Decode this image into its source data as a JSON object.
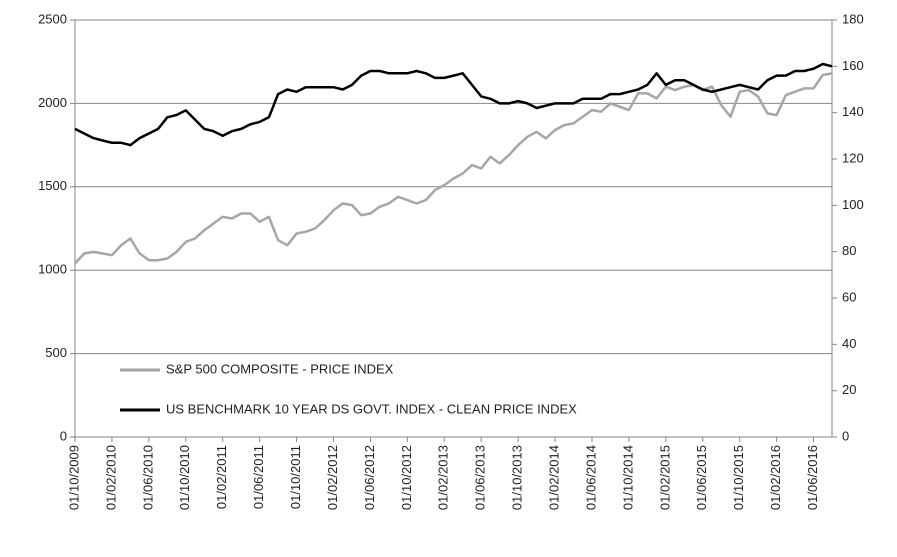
{
  "chart_data": {
    "type": "line",
    "x": [
      "01/10/2009",
      "01/11/2009",
      "01/12/2009",
      "01/01/2010",
      "01/02/2010",
      "01/03/2010",
      "01/04/2010",
      "01/05/2010",
      "01/06/2010",
      "01/07/2010",
      "01/08/2010",
      "01/09/2010",
      "01/10/2010",
      "01/11/2010",
      "01/12/2010",
      "01/01/2011",
      "01/02/2011",
      "01/03/2011",
      "01/04/2011",
      "01/05/2011",
      "01/06/2011",
      "01/07/2011",
      "01/08/2011",
      "01/09/2011",
      "01/10/2011",
      "01/11/2011",
      "01/12/2011",
      "01/01/2012",
      "01/02/2012",
      "01/03/2012",
      "01/04/2012",
      "01/05/2012",
      "01/06/2012",
      "01/07/2012",
      "01/08/2012",
      "01/09/2012",
      "01/10/2012",
      "01/11/2012",
      "01/12/2012",
      "01/01/2013",
      "01/02/2013",
      "01/03/2013",
      "01/04/2013",
      "01/05/2013",
      "01/06/2013",
      "01/07/2013",
      "01/08/2013",
      "01/09/2013",
      "01/10/2013",
      "01/11/2013",
      "01/12/2013",
      "01/01/2014",
      "01/02/2014",
      "01/03/2014",
      "01/04/2014",
      "01/05/2014",
      "01/06/2014",
      "01/07/2014",
      "01/08/2014",
      "01/09/2014",
      "01/10/2014",
      "01/11/2014",
      "01/12/2014",
      "01/01/2015",
      "01/02/2015",
      "01/03/2015",
      "01/04/2015",
      "01/05/2015",
      "01/06/2015",
      "01/07/2015",
      "01/08/2015",
      "01/09/2015",
      "01/10/2015",
      "01/11/2015",
      "01/12/2015",
      "01/01/2016",
      "01/02/2016",
      "01/03/2016",
      "01/04/2016",
      "01/05/2016",
      "01/06/2016",
      "01/07/2016",
      "01/08/2016"
    ],
    "series": [
      {
        "name": "S&P 500 COMPOSITE - PRICE INDEX",
        "color": "#a6a6a6",
        "values": [
          1040,
          1100,
          1110,
          1100,
          1090,
          1150,
          1190,
          1100,
          1060,
          1060,
          1070,
          1110,
          1170,
          1190,
          1240,
          1280,
          1320,
          1310,
          1340,
          1340,
          1290,
          1320,
          1180,
          1150,
          1220,
          1230,
          1250,
          1300,
          1360,
          1400,
          1390,
          1330,
          1340,
          1380,
          1400,
          1440,
          1420,
          1400,
          1420,
          1480,
          1510,
          1550,
          1580,
          1630,
          1610,
          1680,
          1640,
          1690,
          1750,
          1800,
          1830,
          1790,
          1840,
          1870,
          1880,
          1920,
          1960,
          1950,
          2000,
          1980,
          1960,
          2060,
          2060,
          2030,
          2100,
          2080,
          2100,
          2110,
          2080,
          2100,
          1990,
          1920,
          2070,
          2080,
          2040,
          1940,
          1930,
          2050,
          2070,
          2090,
          2090,
          2170,
          2180
        ]
      },
      {
        "name": "US BENCHMARK 10 YEAR DS GOVT. INDEX - CLEAN PRICE INDEX",
        "color": "#000000",
        "axis": "y2",
        "values": [
          133,
          131,
          129,
          128,
          127,
          127,
          126,
          129,
          131,
          133,
          138,
          139,
          141,
          137,
          133,
          132,
          130,
          132,
          133,
          135,
          136,
          138,
          148,
          150,
          149,
          151,
          151,
          151,
          151,
          150,
          152,
          156,
          158,
          158,
          157,
          157,
          157,
          158,
          157,
          155,
          155,
          156,
          157,
          152,
          147,
          146,
          144,
          144,
          145,
          144,
          142,
          143,
          144,
          144,
          144,
          146,
          146,
          146,
          148,
          148,
          149,
          150,
          152,
          157,
          152,
          154,
          154,
          152,
          150,
          149,
          150,
          151,
          152,
          151,
          150,
          154,
          156,
          156,
          158,
          158,
          159,
          161,
          160
        ]
      }
    ],
    "xticks": [
      "01/10/2009",
      "01/02/2010",
      "01/06/2010",
      "01/10/2010",
      "01/02/2011",
      "01/06/2011",
      "01/10/2011",
      "01/02/2012",
      "01/06/2012",
      "01/10/2012",
      "01/02/2013",
      "01/06/2013",
      "01/10/2013",
      "01/02/2014",
      "01/06/2014",
      "01/10/2014",
      "01/02/2015",
      "01/06/2015",
      "01/10/2015",
      "01/02/2016",
      "01/06/2016"
    ],
    "ylim": [
      0,
      2500
    ],
    "yticks": [
      0,
      500,
      1000,
      1500,
      2000,
      2500
    ],
    "y2lim": [
      0,
      180
    ],
    "y2ticks": [
      0,
      20,
      40,
      60,
      80,
      100,
      120,
      140,
      160,
      180
    ],
    "grid": true,
    "legend": "lower left"
  }
}
